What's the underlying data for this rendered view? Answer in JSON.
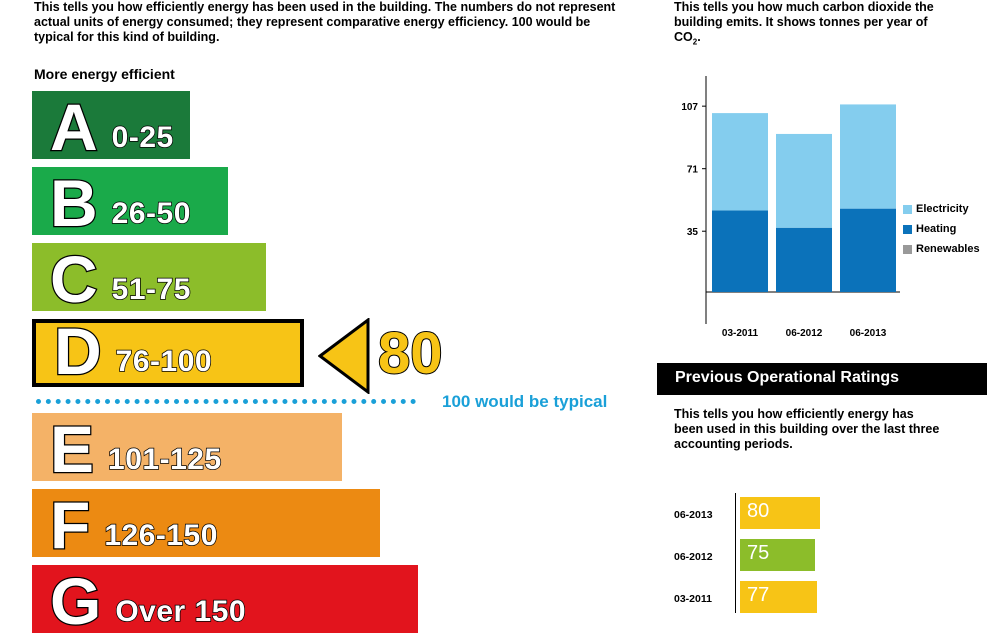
{
  "intro_text": "This tells you how efficiently energy has been used in the building. The numbers do not represent actual units of energy consumed; they represent comparative energy efficiency. 100 would be typical for this kind of building.",
  "more_efficient_label": "More energy efficient",
  "bands": [
    {
      "letter": "A",
      "range": "0-25",
      "color": "#1b7a3a"
    },
    {
      "letter": "B",
      "range": "26-50",
      "color": "#1aaa4a"
    },
    {
      "letter": "C",
      "range": "51-75",
      "color": "#8cbd2a"
    },
    {
      "letter": "D",
      "range": "76-100",
      "color": "#f7c416"
    },
    {
      "letter": "E",
      "range": "101-125",
      "color": "#f4b267"
    },
    {
      "letter": "F",
      "range": "126-150",
      "color": "#ec8a12"
    },
    {
      "letter": "G",
      "range": "Over 150",
      "color": "#e2141d"
    }
  ],
  "current_rating": "80",
  "rating_marker_color": "#f7c416",
  "typical_label": "100 would be typical",
  "co2": {
    "text_line1": "This tells you how much carbon dioxide the",
    "text_line2": "building emits. It shows tonnes per year of",
    "unit": "CO",
    "unit_sub": "2",
    "unit_suffix": "."
  },
  "chart_data": {
    "type": "bar",
    "stacked": true,
    "categories": [
      "03-2011",
      "06-2012",
      "06-2013"
    ],
    "series": [
      {
        "name": "Renewables",
        "color": "#999999",
        "values": [
          0,
          0,
          0
        ]
      },
      {
        "name": "Heating",
        "color": "#0b72ba",
        "values": [
          47,
          37,
          48
        ]
      },
      {
        "name": "Electricity",
        "color": "#84cdee",
        "values": [
          56,
          54,
          60
        ]
      }
    ],
    "yticks": [
      35,
      71,
      107
    ],
    "ylim": [
      0,
      114
    ],
    "legend_order": [
      "Electricity",
      "Heating",
      "Renewables"
    ],
    "legend_position": "right"
  },
  "previous": {
    "title": "Previous Operational Ratings",
    "text_line1": "This tells you how efficiently energy has",
    "text_line2": "been used in this building over the last three",
    "text_line3": "accounting periods.",
    "rows": [
      {
        "date": "06-2013",
        "value": 80,
        "label": "80",
        "color": "#f7c416"
      },
      {
        "date": "06-2012",
        "value": 75,
        "label": "75",
        "color": "#8cbd2a"
      },
      {
        "date": "03-2011",
        "value": 77,
        "label": "77",
        "color": "#f7c416"
      }
    ]
  }
}
